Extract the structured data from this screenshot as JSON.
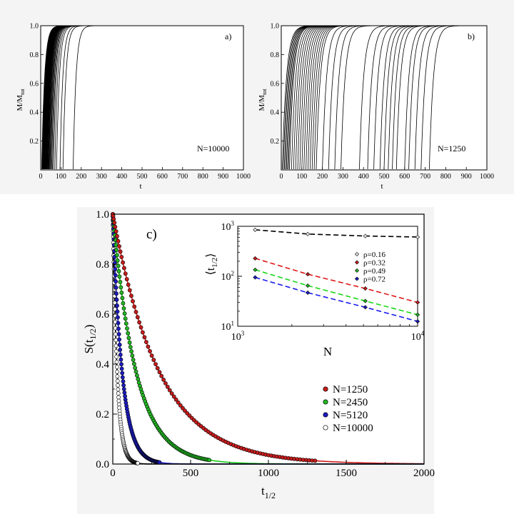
{
  "chart_data": [
    {
      "id": "a",
      "type": "line",
      "panel_label": "a)",
      "annotation": "N=10000",
      "xlabel": "t",
      "ylabel": "M/M",
      "ylabel_sub": "tot",
      "xlim": [
        0,
        1000
      ],
      "ylim": [
        0,
        1.0
      ],
      "xticks": [
        "0",
        "100",
        "200",
        "300",
        "400",
        "500",
        "600",
        "700",
        "800",
        "900",
        "1000"
      ],
      "yticks": [
        "0.2",
        "0.4",
        "0.6",
        "0.8",
        "1.0"
      ],
      "ytick_values": [
        0.2,
        0.4,
        0.6,
        0.8,
        1.0
      ],
      "curve_start_times": [
        5,
        7,
        8,
        9,
        10,
        11,
        12,
        13,
        14,
        15,
        16,
        17,
        18,
        19,
        20,
        21,
        22,
        23,
        24,
        25,
        26,
        27,
        28,
        29,
        30,
        31,
        32,
        33,
        35,
        37,
        39,
        41,
        44,
        47,
        50,
        54,
        58,
        63,
        70,
        78,
        95,
        110,
        160
      ],
      "curve_rise_scale": 14
    },
    {
      "id": "b",
      "type": "line",
      "panel_label": "b)",
      "annotation": "N=1250",
      "xlabel": "t",
      "ylabel": "M/M",
      "ylabel_sub": "tot",
      "xlim": [
        0,
        1000
      ],
      "ylim": [
        0,
        1.0
      ],
      "xticks": [
        "0",
        "100",
        "200",
        "300",
        "400",
        "500",
        "600",
        "700",
        "800",
        "900",
        "1000"
      ],
      "yticks": [
        "0.2",
        "0.4",
        "0.6",
        "0.8",
        "1.0"
      ],
      "ytick_values": [
        0.2,
        0.4,
        0.6,
        0.8,
        1.0
      ],
      "curve_start_times": [
        5,
        10,
        15,
        20,
        25,
        30,
        35,
        40,
        50,
        60,
        70,
        80,
        90,
        100,
        110,
        120,
        130,
        140,
        150,
        160,
        170,
        200,
        230,
        260,
        290,
        380,
        420,
        450,
        480,
        500,
        520,
        540,
        560,
        600,
        620,
        650,
        680,
        720
      ],
      "curve_rise_scale": 20
    },
    {
      "id": "c",
      "type": "scatter",
      "panel_label": "c)",
      "xlabel": "t",
      "xlabel_sub": "1/2",
      "ylabel": "S(t",
      "ylabel_sub": "1/2",
      "ylabel_close": ")",
      "xlim": [
        0,
        2000
      ],
      "ylim": [
        0,
        1.0
      ],
      "xticks": [
        "0",
        "500",
        "1000",
        "1500",
        "2000"
      ],
      "xtick_values": [
        0,
        500,
        1000,
        1500,
        2000
      ],
      "yticks": [
        "0.0",
        "0.2",
        "0.4",
        "0.6",
        "0.8",
        "1.0"
      ],
      "ytick_values": [
        0,
        0.2,
        0.4,
        0.6,
        0.8,
        1.0
      ],
      "series": [
        {
          "name": "N=1250",
          "color": "#d01818",
          "fill": "#c81c1c",
          "tau": 300,
          "npts": 95,
          "xmax": 1300
        },
        {
          "name": "N=2450",
          "color": "#18c818",
          "fill": "#22b822",
          "tau": 150,
          "npts": 95,
          "xmax": 620
        },
        {
          "name": "N=5120",
          "color": "#1a1acc",
          "fill": "#1c1cc0",
          "tau": 60,
          "npts": 95,
          "xmax": 300
        },
        {
          "name": "N=10000",
          "color": "#000000",
          "fill": "#ffffff",
          "tau": 28,
          "npts": 95,
          "xmax": 160
        }
      ]
    },
    {
      "id": "c-inset",
      "type": "line",
      "xscale": "log",
      "yscale": "log",
      "xlabel": "N",
      "ylabel": "⟨t",
      "ylabel_sub": "1/2",
      "ylabel_close": "⟩",
      "xlim": [
        1000,
        10000
      ],
      "ylim": [
        10,
        1000
      ],
      "x": [
        1250,
        2450,
        5120,
        10000
      ],
      "xtick_labels": [
        {
          "base": "10",
          "exp": "3"
        },
        {
          "base": "10",
          "exp": "4"
        }
      ],
      "ytick_labels": [
        {
          "base": "10",
          "exp": "1"
        },
        {
          "base": "10",
          "exp": "2"
        },
        {
          "base": "10",
          "exp": "3"
        }
      ],
      "series": [
        {
          "name": "ρ=0.16",
          "color": "#000000",
          "marker": "#e8e8e8",
          "values": [
            850,
            700,
            640,
            610
          ]
        },
        {
          "name": "ρ=0.32",
          "color": "#e01818",
          "marker": "#c81c1c",
          "values": [
            228,
            110,
            57,
            30
          ]
        },
        {
          "name": "ρ=0.49",
          "color": "#18d818",
          "marker": "#22b822",
          "values": [
            135,
            65,
            32,
            17
          ]
        },
        {
          "name": "ρ=0.72",
          "color": "#1a1aee",
          "marker": "#1c1cc0",
          "values": [
            95,
            47,
            24,
            12.5
          ]
        }
      ]
    }
  ]
}
